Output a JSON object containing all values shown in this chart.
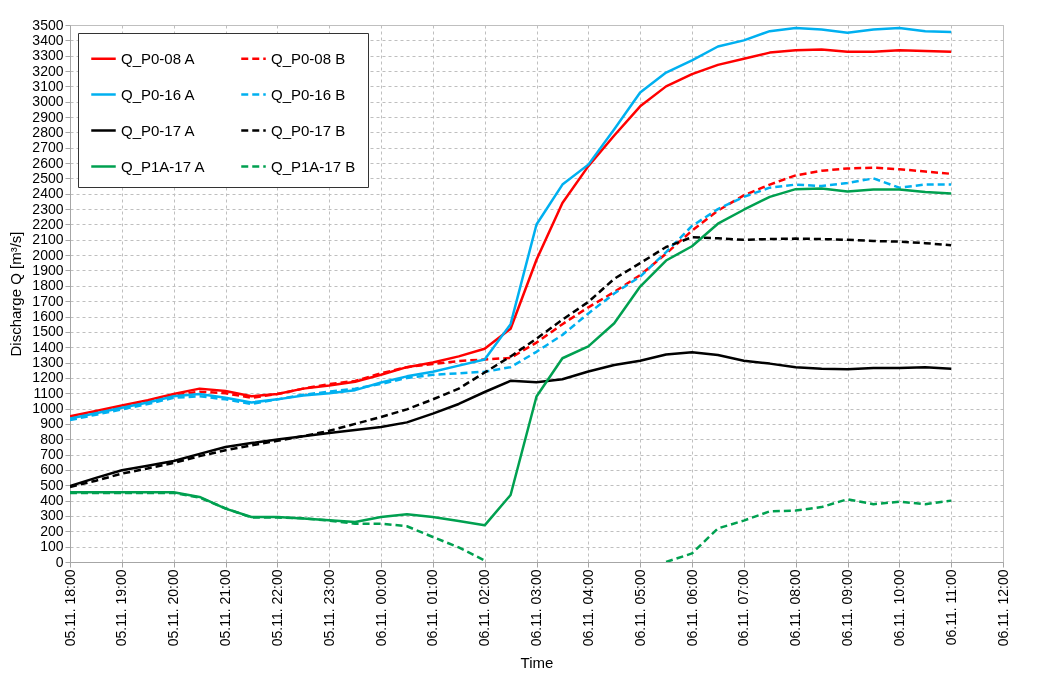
{
  "chart_data": {
    "type": "line",
    "xlabel": "Time",
    "ylabel": "Discharge Q [m³/s]",
    "categories": [
      "05.11. 18:00",
      null,
      "05.11. 19:00",
      null,
      "05.11. 20:00",
      null,
      "05.11. 21:00",
      null,
      "05.11. 22:00",
      null,
      "05.11. 23:00",
      null,
      "06.11. 00:00",
      null,
      "06.11. 01:00",
      null,
      "06.11. 02:00",
      null,
      "06.11. 03:00",
      null,
      "06.11. 04:00",
      null,
      "06.11. 05:00",
      null,
      "06.11. 06:00",
      null,
      "06.11. 07:00",
      null,
      "06.11. 08:00",
      null,
      "06.11. 09:00",
      null,
      "06.11. 10:00",
      null,
      "06.11. 11:00",
      null,
      "06.11. 12:00"
    ],
    "ylim": [
      0,
      3500
    ],
    "yticks": [
      0,
      100,
      200,
      300,
      400,
      500,
      600,
      700,
      800,
      900,
      1000,
      1100,
      1200,
      1300,
      1400,
      1500,
      1600,
      1700,
      1800,
      1900,
      2000,
      2100,
      2200,
      2300,
      2400,
      2500,
      2600,
      2700,
      2800,
      2900,
      3000,
      3100,
      3200,
      3300,
      3400,
      3500
    ],
    "grid": true,
    "legend": "top left",
    "marker": "none",
    "series": [
      {
        "name": "Q_P0-08 A",
        "color": "#ff0000",
        "line_style": "solid",
        "values": [
          950,
          985,
          1020,
          1055,
          1095,
          1130,
          1115,
          1080,
          1095,
          1130,
          1150,
          1175,
          1220,
          1270,
          1300,
          1340,
          1390,
          1520,
          1970,
          2340,
          2580,
          2780,
          2970,
          3100,
          3180,
          3240,
          3280,
          3320,
          3335,
          3340,
          3325,
          3325,
          3335,
          3330,
          3325,
          null,
          null
        ]
      },
      {
        "name": "Q_P0-08 B",
        "color": "#ff0000",
        "line_style": "dashed",
        "values": [
          940,
          975,
          1010,
          1045,
          1085,
          1110,
          1100,
          1070,
          1095,
          1130,
          1160,
          1180,
          1230,
          1270,
          1290,
          1310,
          1320,
          1330,
          1430,
          1550,
          1660,
          1760,
          1870,
          2010,
          2160,
          2290,
          2390,
          2460,
          2520,
          2550,
          2565,
          2570,
          2560,
          2545,
          2530,
          null,
          null
        ]
      },
      {
        "name": "Q_P0-16 A",
        "color": "#00b0f0",
        "line_style": "solid",
        "values": [
          935,
          970,
          1005,
          1040,
          1080,
          1095,
          1070,
          1040,
          1060,
          1085,
          1100,
          1120,
          1170,
          1210,
          1240,
          1280,
          1320,
          1550,
          2200,
          2460,
          2590,
          2820,
          3060,
          3190,
          3270,
          3360,
          3400,
          3460,
          3480,
          3470,
          3450,
          3470,
          3480,
          3460,
          3455,
          null,
          null
        ]
      },
      {
        "name": "Q_P0-16 B",
        "color": "#00b0f0",
        "line_style": "dashed",
        "values": [
          925,
          960,
          995,
          1030,
          1070,
          1080,
          1060,
          1030,
          1060,
          1090,
          1110,
          1130,
          1160,
          1200,
          1220,
          1230,
          1240,
          1270,
          1370,
          1480,
          1620,
          1750,
          1860,
          2020,
          2190,
          2300,
          2380,
          2440,
          2460,
          2450,
          2470,
          2500,
          2440,
          2460,
          2460,
          null,
          null
        ]
      },
      {
        "name": "Q_P0-17 A",
        "color": "#000000",
        "line_style": "solid",
        "values": [
          495,
          548,
          598,
          628,
          658,
          705,
          750,
          775,
          798,
          820,
          841,
          860,
          880,
          910,
          967,
          1030,
          1108,
          1181,
          1172,
          1191,
          1242,
          1284,
          1312,
          1353,
          1367,
          1349,
          1312,
          1293,
          1270,
          1260,
          1256,
          1265,
          1265,
          1270,
          1260,
          null,
          null
        ]
      },
      {
        "name": "Q_P0-17 B",
        "color": "#000000",
        "line_style": "dashed",
        "values": [
          489,
          530,
          576,
          610,
          646,
          690,
          728,
          760,
          790,
          820,
          855,
          900,
          945,
          995,
          1060,
          1130,
          1235,
          1340,
          1456,
          1579,
          1695,
          1846,
          1948,
          2053,
          2117,
          2110,
          2100,
          2105,
          2108,
          2105,
          2100,
          2092,
          2088,
          2078,
          2065,
          null,
          null
        ]
      },
      {
        "name": "Q_P1A-17 A",
        "color": "#00a050",
        "line_style": "solid",
        "values": [
          454,
          454,
          454,
          454,
          454,
          424,
          348,
          293,
          293,
          283,
          272,
          261,
          293,
          311,
          293,
          267,
          239,
          437,
          1079,
          1328,
          1405,
          1556,
          1795,
          1965,
          2058,
          2205,
          2296,
          2380,
          2430,
          2435,
          2415,
          2428,
          2428,
          2411,
          2402,
          null,
          null
        ]
      },
      {
        "name": "Q_P1A-17 B",
        "color": "#00a050",
        "line_style": "dashed",
        "values": [
          450,
          450,
          450,
          450,
          450,
          420,
          350,
          290,
          290,
          285,
          270,
          250,
          250,
          233,
          163,
          95,
          10,
          null,
          null,
          null,
          null,
          null,
          null,
          0,
          56,
          219,
          270,
          330,
          335,
          358,
          409,
          377,
          393,
          377,
          400,
          null,
          null
        ]
      }
    ]
  }
}
